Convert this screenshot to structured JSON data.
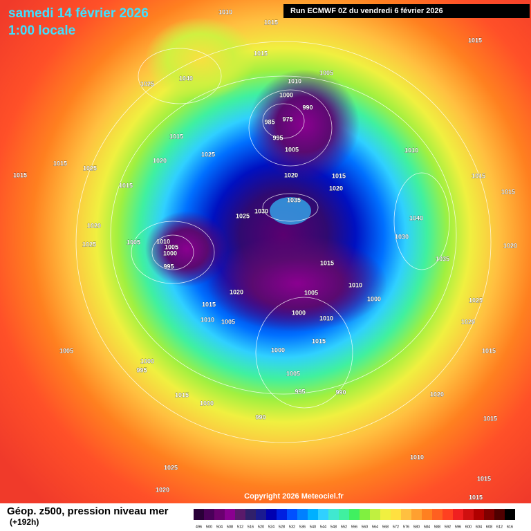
{
  "header": {
    "date": "samedi 14 février 2026",
    "time": "1:00 locale",
    "run": "Run ECMWF 0Z du vendredi 6 février 2026"
  },
  "copyright": "Copyright 2026 Meteociel.fr",
  "footer": {
    "title": "Géop. z500, pression niveau mer",
    "lead": "(+192h)"
  },
  "scale": {
    "values": [
      496,
      500,
      504,
      508,
      512,
      516,
      520,
      524,
      528,
      532,
      536,
      540,
      544,
      548,
      552,
      556,
      560,
      564,
      568,
      572,
      576,
      580,
      584,
      588,
      592,
      596,
      600,
      604,
      608,
      612,
      616
    ],
    "colors": [
      "#2a0038",
      "#4a0059",
      "#6a006f",
      "#8a0090",
      "#5a1a6a",
      "#30206a",
      "#1a1a90",
      "#0000b0",
      "#0020e0",
      "#0050ff",
      "#0080ff",
      "#00b0ff",
      "#30d0ff",
      "#40e8d0",
      "#40f0a0",
      "#40f060",
      "#80f040",
      "#c0f040",
      "#f0f040",
      "#ffe040",
      "#ffc040",
      "#ffa030",
      "#ff8020",
      "#ff6020",
      "#ff4020",
      "#f02020",
      "#d01010",
      "#b00000",
      "#800000",
      "#500000",
      "#000000"
    ]
  },
  "isobar_labels": [
    1010,
    1015,
    1015,
    1005,
    1010,
    1000,
    990,
    985,
    975,
    995,
    1005,
    1020,
    1015,
    1020,
    1035,
    1030,
    1025,
    1010,
    1005,
    1000,
    995,
    1005,
    1015,
    1020,
    1015,
    1005,
    1010,
    1000,
    1000,
    1010,
    1015,
    1010,
    1005,
    1000,
    1005,
    995,
    990,
    990,
    1015,
    1000,
    1005,
    1000,
    995,
    1015,
    1025,
    1040,
    1015,
    1020,
    1025,
    1015,
    1025,
    1015,
    1015,
    1020,
    1025,
    1010,
    1015,
    1015,
    1040,
    1030,
    1020,
    1035,
    1025,
    1020,
    1015,
    1020,
    1015,
    1010,
    1015,
    1025,
    1020,
    1015
  ]
}
